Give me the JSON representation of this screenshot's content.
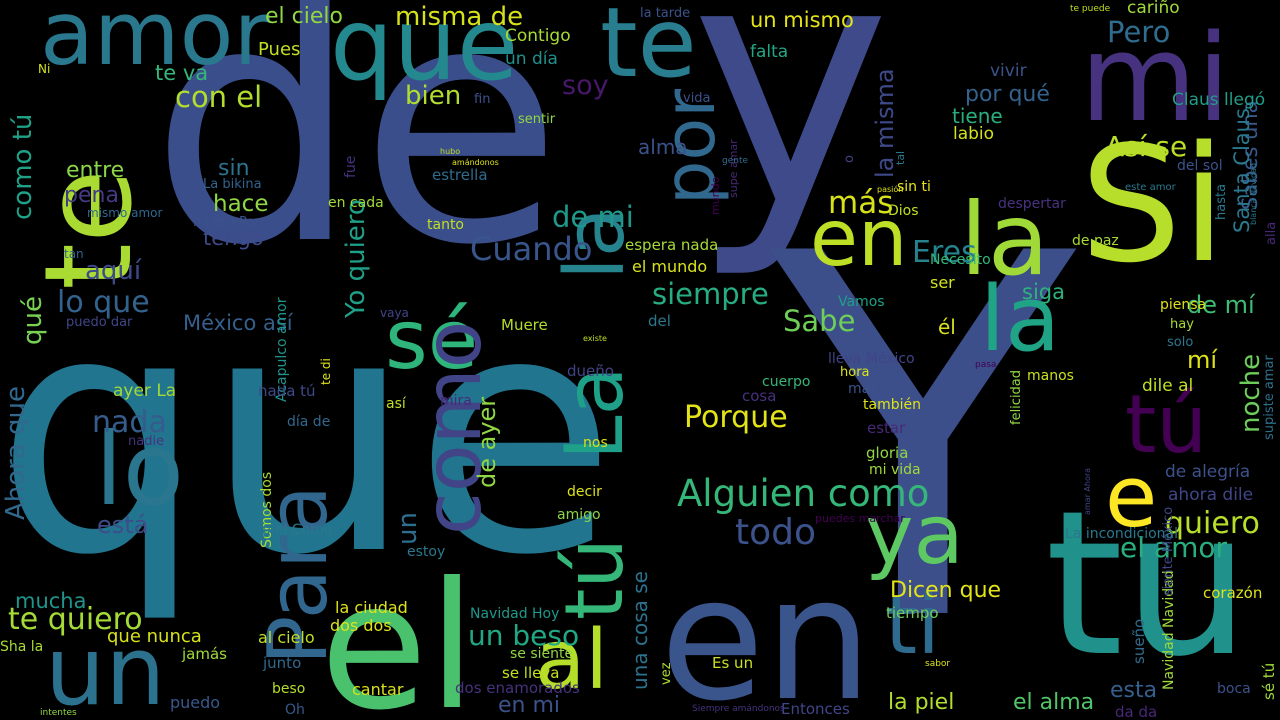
{
  "words": [
    {
      "text": "que",
      "color": "#21758f"
    },
    {
      "text": "de",
      "color": "#3a4e8b"
    },
    {
      "text": "y",
      "color": "#3e4a89"
    },
    {
      "text": "Y",
      "color": "#3c4f8a"
    },
    {
      "text": "tu",
      "color": "#21918c"
    },
    {
      "text": "en",
      "color": "#3a548c"
    },
    {
      "text": "el",
      "color": "#4ac16d"
    },
    {
      "text": "te",
      "color": "#a9db33"
    },
    {
      "text": "Si",
      "color": "#b6de2b"
    },
    {
      "text": "mi",
      "color": "#46327e"
    },
    {
      "text": "amor",
      "color": "#2a788e"
    },
    {
      "text": "te",
      "color": "#287d8e"
    },
    {
      "text": "que",
      "color": "#23898e"
    },
    {
      "text": "la",
      "color": "#a0da39"
    },
    {
      "text": "en",
      "color": "#bddf26"
    },
    {
      "text": "un",
      "color": "#2c728e"
    },
    {
      "text": "lo",
      "color": "#2a768e"
    },
    {
      "text": "ya",
      "color": "#5ec962"
    },
    {
      "text": "ti",
      "color": "#2f6b8e"
    },
    {
      "text": "al",
      "color": "#b5de2b"
    },
    {
      "text": "tú",
      "color": "#440154"
    },
    {
      "text": "e",
      "color": "#fde725"
    },
    {
      "text": "la",
      "color": "#20a486"
    },
    {
      "text": "sé",
      "color": "#2fb47c"
    },
    {
      "text": "Alguien como",
      "color": "#35b779"
    },
    {
      "text": "Para",
      "color": "#31678e"
    },
    {
      "text": "como",
      "color": "#414487"
    },
    {
      "text": "tú",
      "color": "#35b779"
    },
    {
      "text": "La",
      "color": "#1fa088"
    },
    {
      "text": "la",
      "color": "#25848e"
    },
    {
      "text": "por",
      "color": "#31688e"
    },
    {
      "text": "Porque",
      "color": "#e2e418"
    },
    {
      "text": "quiero",
      "color": "#b8de29"
    },
    {
      "text": "el amor",
      "color": "#29af7f"
    },
    {
      "text": "todo",
      "color": "#3b528b"
    },
    {
      "text": "te quiero",
      "color": "#a5db36"
    },
    {
      "text": "un beso",
      "color": "#22a785"
    },
    {
      "text": "siempre",
      "color": "#26ad81"
    },
    {
      "text": "Sabe",
      "color": "#6ece58"
    },
    {
      "text": "Cuando",
      "color": "#39568c"
    },
    {
      "text": "de mi",
      "color": "#1f988b"
    },
    {
      "text": "más",
      "color": "#d8e219"
    },
    {
      "text": "Así se",
      "color": "#bade28"
    },
    {
      "text": "Eres",
      "color": "#25838e"
    },
    {
      "text": "Pero",
      "color": "#2f6c8e"
    },
    {
      "text": "lo que",
      "color": "#33638d"
    },
    {
      "text": "aquí",
      "color": "#3e4989"
    },
    {
      "text": "nada",
      "color": "#365c8d"
    },
    {
      "text": "bien",
      "color": "#b0dd2f"
    },
    {
      "text": "con el",
      "color": "#b2dd2d"
    },
    {
      "text": "soy",
      "color": "#48186a"
    },
    {
      "text": "misma de",
      "color": "#d5e21a"
    },
    {
      "text": "el cielo",
      "color": "#90d743"
    },
    {
      "text": "un día",
      "color": "#21908d"
    },
    {
      "text": "Contigo",
      "color": "#a8db34"
    },
    {
      "text": "te va",
      "color": "#35b779"
    },
    {
      "text": "hace",
      "color": "#90d743"
    },
    {
      "text": "sin",
      "color": "#2c738e"
    },
    {
      "text": "entre",
      "color": "#8bd646"
    },
    {
      "text": "pena",
      "color": "#443983"
    },
    {
      "text": "tengo",
      "color": "#3e4a89"
    },
    {
      "text": "como tú",
      "color": "#1fa187"
    },
    {
      "text": "qué",
      "color": "#77d153"
    },
    {
      "text": "Ahora que",
      "color": "#31688e"
    },
    {
      "text": "México así",
      "color": "#355f8d"
    },
    {
      "text": "ayer La",
      "color": "#a2da37"
    },
    {
      "text": "está",
      "color": "#3d4d8a"
    },
    {
      "text": "mucha",
      "color": "#1f958b"
    },
    {
      "text": "que nunca",
      "color": "#d5e21a"
    },
    {
      "text": "un",
      "color": "#2e6e8e"
    },
    {
      "text": "de ayer",
      "color": "#90d743"
    },
    {
      "text": "Yo quiero",
      "color": "#1fa088"
    },
    {
      "text": "noche",
      "color": "#6ccd5a"
    },
    {
      "text": "la misma",
      "color": "#3e4989"
    },
    {
      "text": "Sabes una",
      "color": "#38598c"
    },
    {
      "text": "Santa Claus",
      "color": "#2a788e"
    },
    {
      "text": "por qué",
      "color": "#33638d"
    },
    {
      "text": "tiene",
      "color": "#29af7f"
    },
    {
      "text": "vivir",
      "color": "#3b528b"
    },
    {
      "text": "labio",
      "color": "#d2e21b"
    },
    {
      "text": "un mismo",
      "color": "#e5e419"
    },
    {
      "text": "falta",
      "color": "#22a785"
    },
    {
      "text": "cariño",
      "color": "#a0da39"
    },
    {
      "text": "Claus llegó",
      "color": "#1f9e89"
    },
    {
      "text": "siga",
      "color": "#2db27d"
    },
    {
      "text": "de mí",
      "color": "#3dbc74"
    },
    {
      "text": "mí",
      "color": "#dde318"
    },
    {
      "text": "él",
      "color": "#d8e219"
    },
    {
      "text": "ser",
      "color": "#d2e21b"
    },
    {
      "text": "dile al",
      "color": "#c0df25"
    },
    {
      "text": "de alegría",
      "color": "#3b528b"
    },
    {
      "text": "ahora dile",
      "color": "#404688"
    },
    {
      "text": "Dicen que",
      "color": "#e2e418"
    },
    {
      "text": "la piel",
      "color": "#b0dd2f"
    },
    {
      "text": "el alma",
      "color": "#52c569"
    },
    {
      "text": "esta",
      "color": "#355f8d"
    },
    {
      "text": "en mi",
      "color": "#3b528b"
    },
    {
      "text": "una cosa se",
      "color": "#2c728e"
    },
    {
      "text": "da da",
      "color": "#482878"
    },
    {
      "text": "dos enamorados",
      "color": "#46327e"
    },
    {
      "text": "cantar",
      "color": "#d8e219"
    },
    {
      "text": "al cielo",
      "color": "#c2df23"
    },
    {
      "text": "dos dos",
      "color": "#dde318"
    },
    {
      "text": "la ciudad",
      "color": "#dde318"
    },
    {
      "text": "Sha la",
      "color": "#a8db34"
    },
    {
      "text": "jamás",
      "color": "#a0da39"
    },
    {
      "text": "puedo",
      "color": "#38598c"
    },
    {
      "text": "Oh",
      "color": "#38598c"
    },
    {
      "text": "beso",
      "color": "#b2dd2d"
    },
    {
      "text": "junto",
      "color": "#31688e"
    },
    {
      "text": "Es un",
      "color": "#c8e020"
    },
    {
      "text": "Entonces",
      "color": "#404688"
    },
    {
      "text": "se lleva",
      "color": "#c5e021"
    },
    {
      "text": "tiempo",
      "color": "#6ece58"
    },
    {
      "text": "corazón",
      "color": "#dde318"
    },
    {
      "text": "boca",
      "color": "#3b528b"
    },
    {
      "text": "sueño",
      "color": "#2f6c8e"
    },
    {
      "text": "sé tú",
      "color": "#a0da39"
    },
    {
      "text": "Navidad Navidad",
      "color": "#a0da39"
    },
    {
      "text": "siente México",
      "color": "#3e4989"
    },
    {
      "text": "vez",
      "color": "#b0dd2f"
    },
    {
      "text": "Navidad Hoy",
      "color": "#1f988b"
    },
    {
      "text": "se siente",
      "color": "#90d743"
    },
    {
      "text": "nos",
      "color": "#d8e219"
    },
    {
      "text": "amigo",
      "color": "#8bd646"
    },
    {
      "text": "decir",
      "color": "#dde318"
    },
    {
      "text": "estoy",
      "color": "#2a788e"
    },
    {
      "text": "dueño",
      "color": "#414487"
    },
    {
      "text": "Muere",
      "color": "#b2dd2d"
    },
    {
      "text": "Somos dos",
      "color": "#a8db34"
    },
    {
      "text": "Acapulco amor",
      "color": "#1f948c"
    },
    {
      "text": "nada tú",
      "color": "#3e4989"
    },
    {
      "text": "día de",
      "color": "#31688e"
    },
    {
      "text": "así",
      "color": "#c0df25"
    },
    {
      "text": "mira",
      "color": "#482878"
    },
    {
      "text": "fin",
      "color": "#3b528b"
    },
    {
      "text": "sentir",
      "color": "#90d743"
    },
    {
      "text": "vida",
      "color": "#3b528b"
    },
    {
      "text": "fue",
      "color": "#46327e"
    },
    {
      "text": "estrella",
      "color": "#2f6c8e"
    },
    {
      "text": "en cada",
      "color": "#a2da37"
    },
    {
      "text": "tanto",
      "color": "#c2df23"
    },
    {
      "text": "espera nada",
      "color": "#a5db36"
    },
    {
      "text": "el mundo",
      "color": "#d8e219"
    },
    {
      "text": "alma",
      "color": "#3b528b"
    },
    {
      "text": "o",
      "color": "#414487"
    },
    {
      "text": "sin ti",
      "color": "#e5e419"
    },
    {
      "text": "Dios",
      "color": "#c2df23"
    },
    {
      "text": "despertar",
      "color": "#46327e"
    },
    {
      "text": "de paz",
      "color": "#a8db34"
    },
    {
      "text": "piensa",
      "color": "#dde318"
    },
    {
      "text": "del sol",
      "color": "#3b528b"
    },
    {
      "text": "hasta",
      "color": "#2a788e"
    },
    {
      "text": "alla",
      "color": "#482878"
    },
    {
      "text": "este amor",
      "color": "#2a788e"
    },
    {
      "text": "Necesito",
      "color": "#35b779"
    },
    {
      "text": "Vamos",
      "color": "#1fa088"
    },
    {
      "text": "del",
      "color": "#2a788e"
    },
    {
      "text": "lleva México",
      "color": "#414487"
    },
    {
      "text": "hora",
      "color": "#dde318"
    },
    {
      "text": "mar",
      "color": "#3b528b"
    },
    {
      "text": "también",
      "color": "#dde318"
    },
    {
      "text": "estar",
      "color": "#482878"
    },
    {
      "text": "gloria",
      "color": "#90d743"
    },
    {
      "text": "mi vida",
      "color": "#a0da39"
    },
    {
      "text": "cuerpo",
      "color": "#35b779"
    },
    {
      "text": "cosa",
      "color": "#46327e"
    },
    {
      "text": "felicidad",
      "color": "#90d743"
    },
    {
      "text": "manos",
      "color": "#c8e020"
    },
    {
      "text": "solo",
      "color": "#2a788e"
    },
    {
      "text": "hay",
      "color": "#a8db34"
    },
    {
      "text": "pasa",
      "color": "#440154"
    },
    {
      "text": "supiste amar",
      "color": "#2c728e"
    },
    {
      "text": "La incondicional",
      "color": "#2a788e"
    },
    {
      "text": "sabor",
      "color": "#dde318"
    },
    {
      "text": "Pues",
      "color": "#c2df23"
    },
    {
      "text": "Ni",
      "color": "#d5e21a"
    },
    {
      "text": "La bikina",
      "color": "#33638d"
    },
    {
      "text": "muero Por",
      "color": "#3b528b"
    },
    {
      "text": "mismo amor",
      "color": "#31688e"
    },
    {
      "text": "tan",
      "color": "#33638d"
    },
    {
      "text": "puedo dar",
      "color": "#404688"
    },
    {
      "text": "vaya",
      "color": "#414487"
    },
    {
      "text": "te di",
      "color": "#dde318"
    },
    {
      "text": "nadie",
      "color": "#46327e"
    },
    {
      "text": "piel Como",
      "color": "#2a788e"
    },
    {
      "text": "la tarde",
      "color": "#3b528b"
    },
    {
      "text": "te puede",
      "color": "#c2df23"
    },
    {
      "text": "intentes",
      "color": "#90d743"
    },
    {
      "text": "Siempre amándonos",
      "color": "#46327e"
    },
    {
      "text": "puedes marchar",
      "color": "#440154"
    },
    {
      "text": "mundo",
      "color": "#440154"
    },
    {
      "text": "supe amar",
      "color": "#482878"
    },
    {
      "text": "gente",
      "color": "#2f6c8e"
    },
    {
      "text": "hubo",
      "color": "#c2df23"
    },
    {
      "text": "amándonos",
      "color": "#dde318"
    },
    {
      "text": "existe",
      "color": "#c2df23"
    },
    {
      "text": "pasión",
      "color": "#dde318"
    },
    {
      "text": "tal",
      "color": "#2a788e"
    },
    {
      "text": "blanca Navidad",
      "color": "#2a788e"
    },
    {
      "text": "amar Ahora",
      "color": "#404688"
    },
    {
      "text": "llegó",
      "color": "#dde318"
    }
  ]
}
